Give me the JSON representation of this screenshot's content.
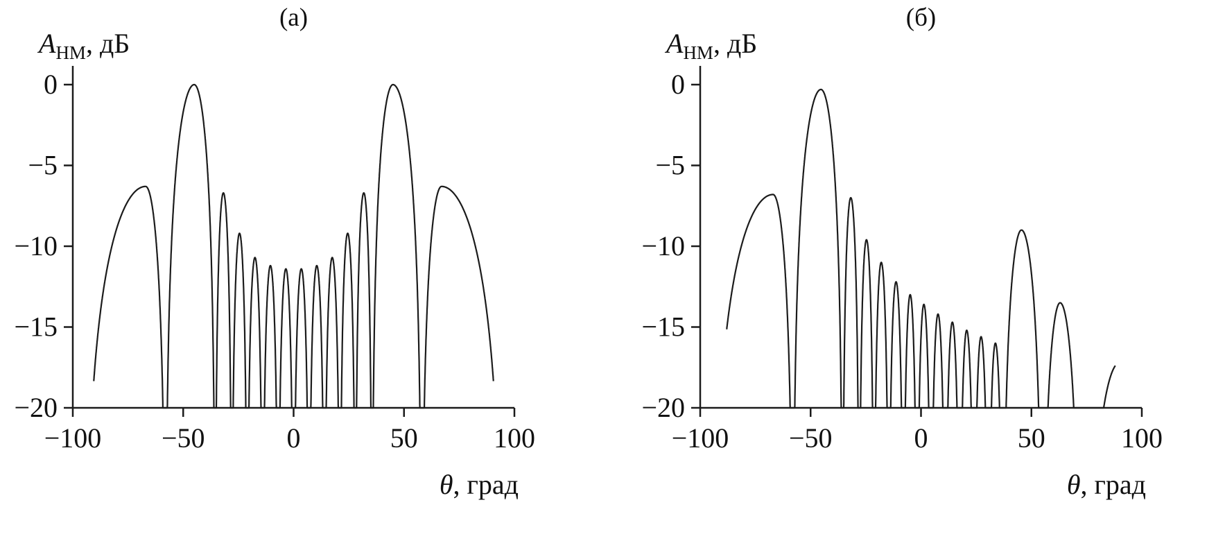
{
  "figure": {
    "background": "#ffffff",
    "line_color": "#1b1b1b",
    "text_color": "#111111"
  },
  "chart_data": [
    {
      "type": "line",
      "panel_label": "(а)",
      "ylabel": "Aнм, дБ",
      "xlabel": "θ, град",
      "ylabel_parts": {
        "var": "A",
        "sub": "НМ",
        "rest": ", дБ"
      },
      "xlabel_parts": {
        "var": "θ",
        "rest": ", град"
      },
      "xlim": [
        -100,
        100
      ],
      "ylim": [
        -20,
        0
      ],
      "xticks": [
        -100,
        -50,
        0,
        50,
        100
      ],
      "xtick_labels": [
        "−100",
        "−50",
        "0",
        "50",
        "100"
      ],
      "yticks": [
        0,
        -5,
        -10,
        -15,
        -20
      ],
      "ytick_labels": [
        "0",
        "−5",
        "−10",
        "−15",
        "−20"
      ],
      "grid": false,
      "legend": null,
      "domain": [
        -90.5,
        90.5
      ],
      "curve_model": "lobe_db(theta) = peak_db + 20*log10(|cos(pi/2*(theta-peak)/width_to_null)|), clipped at ylim floor",
      "description": "Symmetric normalized two-beam antenna pattern: main lobes 0 дБ at ±45°, sidelobes decaying toward broadside, wide outer lobes −6.3 дБ at ±67°",
      "lobes": [
        {
          "nulls": [
            -95,
            -58
          ],
          "peak": -67,
          "peak_db": -6.3
        },
        {
          "nulls": [
            -58,
            -35.5
          ],
          "peak": -45,
          "peak_db": 0
        },
        {
          "nulls": [
            -35.5,
            -28
          ],
          "peak": -31.8,
          "peak_db": -6.7
        },
        {
          "nulls": [
            -28,
            -21
          ],
          "peak": -24.5,
          "peak_db": -9.2
        },
        {
          "nulls": [
            -21,
            -14
          ],
          "peak": -17.5,
          "peak_db": -10.7
        },
        {
          "nulls": [
            -14,
            -7
          ],
          "peak": -10.5,
          "peak_db": -11.2
        },
        {
          "nulls": [
            -7,
            0
          ],
          "peak": -3.5,
          "peak_db": -11.4
        },
        {
          "nulls": [
            0,
            7
          ],
          "peak": 3.5,
          "peak_db": -11.4
        },
        {
          "nulls": [
            7,
            14
          ],
          "peak": 10.5,
          "peak_db": -11.2
        },
        {
          "nulls": [
            14,
            21
          ],
          "peak": 17.5,
          "peak_db": -10.7
        },
        {
          "nulls": [
            21,
            28
          ],
          "peak": 24.5,
          "peak_db": -9.2
        },
        {
          "nulls": [
            28,
            35.5
          ],
          "peak": 31.8,
          "peak_db": -6.7
        },
        {
          "nulls": [
            35.5,
            58
          ],
          "peak": 45,
          "peak_db": 0
        },
        {
          "nulls": [
            58,
            95
          ],
          "peak": 67,
          "peak_db": -6.3
        }
      ]
    },
    {
      "type": "line",
      "panel_label": "(б)",
      "ylabel": "Aнм, дБ",
      "xlabel": "θ, град",
      "ylabel_parts": {
        "var": "A",
        "sub": "НМ",
        "rest": ", дБ"
      },
      "xlabel_parts": {
        "var": "θ",
        "rest": ", град"
      },
      "xlim": [
        -100,
        100
      ],
      "ylim": [
        -20,
        0
      ],
      "xticks": [
        -100,
        -50,
        0,
        50,
        100
      ],
      "xtick_labels": [
        "−100",
        "−50",
        "0",
        "50",
        "100"
      ],
      "yticks": [
        0,
        -5,
        -10,
        -15,
        -20
      ],
      "ytick_labels": [
        "0",
        "−5",
        "−10",
        "−15",
        "−20"
      ],
      "grid": false,
      "legend": null,
      "domain": [
        -88,
        88
      ],
      "curve_model": "lobe_db(theta) = peak_db + 20*log10(|cos(pi/2*(theta-peak)/width_to_null)|), clipped at ylim floor",
      "description": "Asymmetric pattern with one main lobe −0.3 дБ at −45°, monotonically decaying sidelobes toward positive angles and a residual suppressed beam −9 дБ near +45°",
      "lobes": [
        {
          "nulls": [
            -95,
            -58
          ],
          "peak": -67,
          "peak_db": -6.8
        },
        {
          "nulls": [
            -58,
            -35.5
          ],
          "peak": -45.3,
          "peak_db": -0.3
        },
        {
          "nulls": [
            -35.5,
            -28
          ],
          "peak": -31.8,
          "peak_db": -7.0
        },
        {
          "nulls": [
            -28,
            -21.3
          ],
          "peak": -24.7,
          "peak_db": -9.6
        },
        {
          "nulls": [
            -21.3,
            -14.6
          ],
          "peak": -18,
          "peak_db": -11.0
        },
        {
          "nulls": [
            -14.6,
            -8
          ],
          "peak": -11.3,
          "peak_db": -12.2
        },
        {
          "nulls": [
            -8,
            -1.8
          ],
          "peak": -4.9,
          "peak_db": -13.0
        },
        {
          "nulls": [
            -1.8,
            4.5
          ],
          "peak": 1.3,
          "peak_db": -13.6
        },
        {
          "nulls": [
            4.5,
            11
          ],
          "peak": 7.7,
          "peak_db": -14.2
        },
        {
          "nulls": [
            11,
            17.5
          ],
          "peak": 14.2,
          "peak_db": -14.7
        },
        {
          "nulls": [
            17.5,
            24
          ],
          "peak": 20.7,
          "peak_db": -15.2
        },
        {
          "nulls": [
            24,
            30.5
          ],
          "peak": 27.2,
          "peak_db": -15.6
        },
        {
          "nulls": [
            30.5,
            37
          ],
          "peak": 33.7,
          "peak_db": -16.0
        },
        {
          "nulls": [
            37,
            55
          ],
          "peak": 45.5,
          "peak_db": -9.0
        },
        {
          "nulls": [
            55,
            72
          ],
          "peak": 63,
          "peak_db": -13.5
        },
        {
          "nulls": [
            75,
            105
          ],
          "peak": 90,
          "peak_db": -17.2
        }
      ]
    }
  ]
}
